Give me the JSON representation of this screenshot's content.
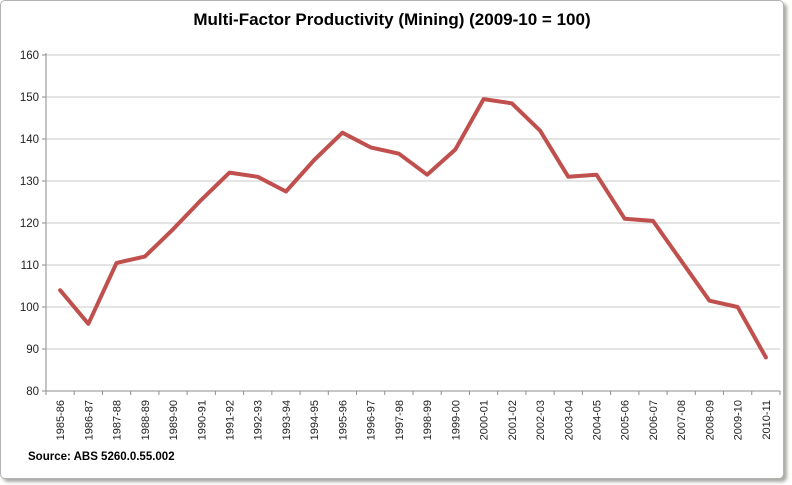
{
  "chart": {
    "title": "Multi-Factor Productivity (Mining) (2009-10 = 100)",
    "source": "Source: ABS 5260.0.55.002"
  },
  "chart_data": {
    "type": "line",
    "title": "Multi-Factor Productivity (Mining) (2009-10 = 100)",
    "categories": [
      "1985-86",
      "1986-87",
      "1987-88",
      "1988-89",
      "1989-90",
      "1990-91",
      "1991-92",
      "1992-93",
      "1993-94",
      "1994-95",
      "1995-96",
      "1996-97",
      "1997-98",
      "1998-99",
      "1999-00",
      "2000-01",
      "2001-02",
      "2002-03",
      "2003-04",
      "2004-05",
      "2005-06",
      "2006-07",
      "2007-08",
      "2008-09",
      "2009-10",
      "2010-11"
    ],
    "values": [
      104,
      96,
      110.5,
      112,
      118.5,
      125.5,
      132,
      131,
      127.5,
      135,
      141.5,
      138,
      136.5,
      131.5,
      137.5,
      149.5,
      148.5,
      142,
      131,
      131.5,
      121,
      120.5,
      111,
      101.5,
      100,
      88
    ],
    "xlabel": "",
    "ylabel": "",
    "ylim": [
      80,
      160
    ],
    "ytick_step": 10,
    "grid": true,
    "legend_position": "none",
    "source": "Source: ABS 5260.0.55.002",
    "colors": {
      "line": "#C0504D",
      "gridline": "#C9C9C9",
      "axis": "#8E8E8E",
      "labels": "#1f1f1f",
      "background": "#FFFFFF"
    }
  }
}
